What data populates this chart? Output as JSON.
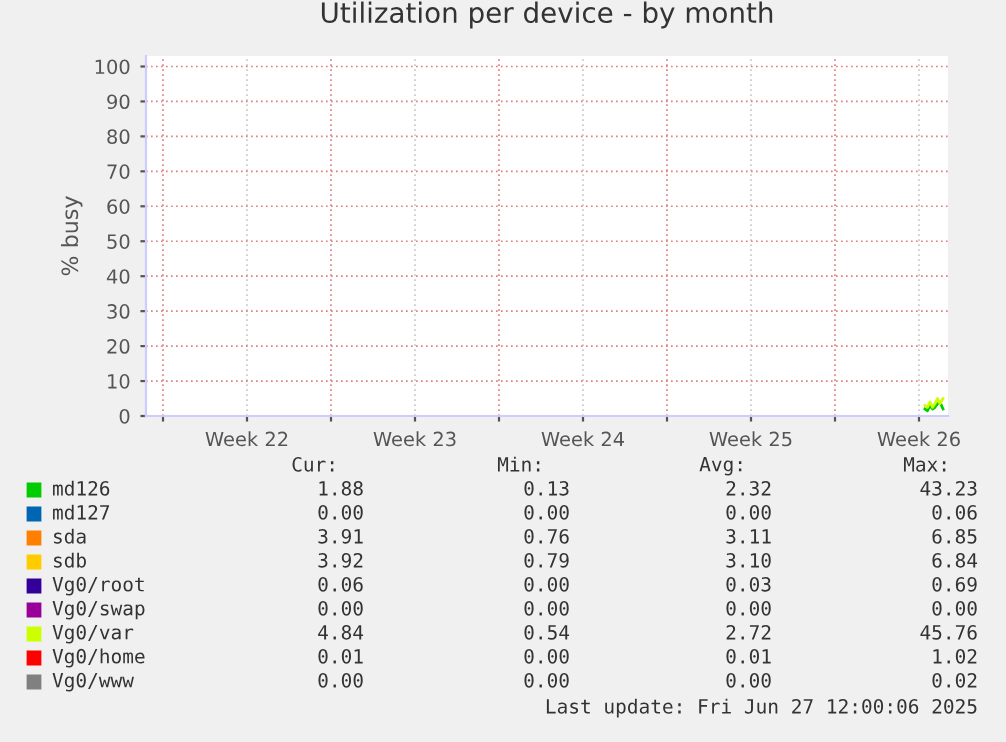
{
  "chart_data": {
    "type": "line",
    "title": "Utilization per device - by month",
    "ylabel": "% busy",
    "xlim": [
      "2025-05-25T07:00",
      "2025-06-27T17:00"
    ],
    "xticks": [
      {
        "value": "2025-05-26",
        "label": null
      },
      {
        "value": "2025-05-29T12:00",
        "label": "Week 22"
      },
      {
        "value": "2025-06-02",
        "label": null
      },
      {
        "value": "2025-06-05T12:00",
        "label": "Week 23"
      },
      {
        "value": "2025-06-09",
        "label": null
      },
      {
        "value": "2025-06-12T12:00",
        "label": "Week 24"
      },
      {
        "value": "2025-06-16",
        "label": null
      },
      {
        "value": "2025-06-19T12:00",
        "label": "Week 25"
      },
      {
        "value": "2025-06-23",
        "label": null
      },
      {
        "value": "2025-06-26T12:00",
        "label": "Week 26"
      }
    ],
    "ylim": [
      0,
      103
    ],
    "yticks": [
      0,
      10,
      20,
      30,
      40,
      50,
      60,
      70,
      80,
      90,
      100
    ],
    "grid": true,
    "legend": "bottom",
    "series": [
      {
        "name": "md126",
        "color": "#00cc00",
        "x": [
          "2025-06-26T18:00",
          "2025-06-26T20:30",
          "2025-06-26T23:00",
          "2025-06-27T01:30",
          "2025-06-27T04:00",
          "2025-06-27T06:30",
          "2025-06-27T09:00",
          "2025-06-27T12:00"
        ],
        "values": [
          2,
          1.5,
          3,
          2,
          2.5,
          3.5,
          4,
          2
        ]
      },
      {
        "name": "md127",
        "color": "#0066b3"
      },
      {
        "name": "sda",
        "color": "#ff8000"
      },
      {
        "name": "sdb",
        "color": "#ffcc00"
      },
      {
        "name": "Vg0/root",
        "color": "#330099"
      },
      {
        "name": "Vg0/swap",
        "color": "#990099"
      },
      {
        "name": "Vg0/var",
        "color": "#ccff00",
        "x": [
          "2025-06-26T18:00",
          "2025-06-26T20:30",
          "2025-06-26T23:00",
          "2025-06-27T01:30",
          "2025-06-27T04:00",
          "2025-06-27T06:30",
          "2025-06-27T09:00",
          "2025-06-27T12:00"
        ],
        "values": [
          3,
          2.5,
          4,
          2.5,
          3.5,
          5,
          3.5,
          5
        ]
      },
      {
        "name": "Vg0/home",
        "color": "#ff0000"
      },
      {
        "name": "Vg0/www",
        "color": "#808080"
      }
    ],
    "annotations": [
      "Cur:",
      "Min:",
      "Avg:",
      "Max:",
      "1.88",
      "0.13",
      "2.32",
      "43.23",
      "0.00",
      "0.00",
      "0.00",
      "0.06",
      "3.91",
      "0.76",
      "3.11",
      "6.85",
      "3.92",
      "0.79",
      "3.10",
      "6.84",
      "0.06",
      "0.00",
      "0.03",
      "0.69",
      "0.00",
      "0.00",
      "0.00",
      "0.00",
      "4.84",
      "0.54",
      "2.72",
      "45.76",
      "0.01",
      "0.00",
      "0.01",
      "1.02",
      "0.00",
      "0.00",
      "0.00",
      "0.02",
      "Last update: Fri Jun 27 12:00:06 2025"
    ]
  }
}
